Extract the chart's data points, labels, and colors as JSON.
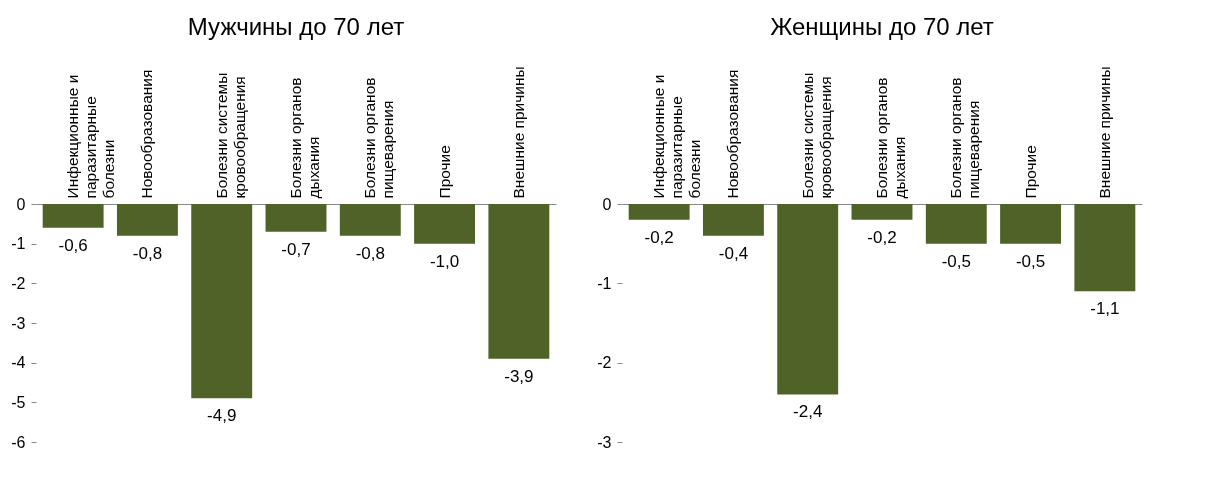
{
  "chart_data": [
    {
      "type": "bar",
      "title": "Мужчины до 70 лет",
      "categories": [
        "Инфекционные и паразитарные болезни",
        "Новообразования",
        "Болезни системы кровообращения",
        "Болезни органов дыхания",
        "Болезни органов пищеварения",
        "Прочие",
        "Внешние причины"
      ],
      "values": [
        -0.6,
        -0.8,
        -4.9,
        -0.7,
        -0.8,
        -1.0,
        -3.9
      ],
      "value_labels": [
        "-0,6",
        "-0,8",
        "-4,9",
        "-0,7",
        "-0,8",
        "-1,0",
        "-3,9"
      ],
      "color": "#4f6228",
      "ylim": [
        -6,
        0
      ],
      "yticks": [
        -6,
        -5,
        -4,
        -3,
        -2,
        -1,
        0
      ]
    },
    {
      "type": "bar",
      "title": "Женщины до 70 лет",
      "categories": [
        "Инфекционные и паразитарные болезни",
        "Новообразования",
        "Болезни системы кровообращения",
        "Болезни органов дыхания",
        "Болезни органов пищеварения",
        "Прочие",
        "Внешние причины"
      ],
      "values": [
        -0.2,
        -0.4,
        -2.4,
        -0.2,
        -0.5,
        -0.5,
        -1.1
      ],
      "value_labels": [
        "-0,2",
        "-0,4",
        "-2,4",
        "-0,2",
        "-0,5",
        "-0,5",
        "-1,1"
      ],
      "color": "#4f6228",
      "ylim": [
        -3,
        0
      ],
      "yticks": [
        -3,
        -2,
        -1,
        0
      ]
    }
  ]
}
